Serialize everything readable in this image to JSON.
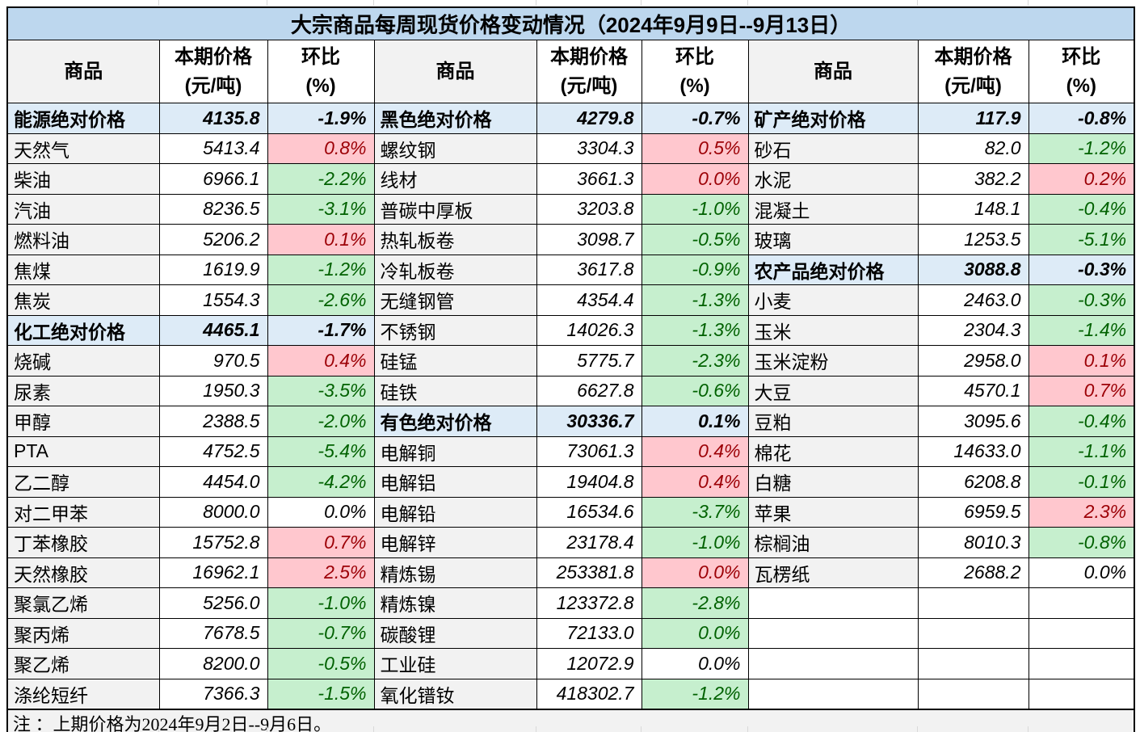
{
  "colors": {
    "title_bg": "#BDD7EE",
    "section_row_bg": "#DDEBF7",
    "up_cell_bg": "#FFC7CE",
    "up_text": "#9C0006",
    "down_cell_bg": "#C6EFCE",
    "down_text": "#006100",
    "name_column_bg": "#F2F2F2",
    "border": "#000000"
  },
  "chart_data": {
    "type": "table",
    "title": "大宗商品每周现货价格变动情况（2024年9月9日--9月13日）",
    "note": "注 ：上期价格为2024年9月2日--9月6日。",
    "column_headers": {
      "commodity": "商品",
      "price": "本期价格\n(元/吨)",
      "pct": "环比\n(%)"
    },
    "groups": [
      {
        "rows": [
          {
            "name": "能源绝对价格",
            "price": "4135.8",
            "pct": "-1.9%",
            "style": "section"
          },
          {
            "name": "天然气",
            "price": "5413.4",
            "pct": "0.8%",
            "style": "up"
          },
          {
            "name": "柴油",
            "price": "6966.1",
            "pct": "-2.2%",
            "style": "down"
          },
          {
            "name": "汽油",
            "price": "8236.5",
            "pct": "-3.1%",
            "style": "down"
          },
          {
            "name": "燃料油",
            "price": "5206.2",
            "pct": "0.1%",
            "style": "up"
          },
          {
            "name": "焦煤",
            "price": "1619.9",
            "pct": "-1.2%",
            "style": "down"
          },
          {
            "name": "焦炭",
            "price": "1554.3",
            "pct": "-2.6%",
            "style": "down"
          },
          {
            "name": "化工绝对价格",
            "price": "4465.1",
            "pct": "-1.7%",
            "style": "section"
          },
          {
            "name": "烧碱",
            "price": "970.5",
            "pct": "0.4%",
            "style": "up"
          },
          {
            "name": "尿素",
            "price": "1950.3",
            "pct": "-3.5%",
            "style": "down"
          },
          {
            "name": "甲醇",
            "price": "2388.5",
            "pct": "-2.0%",
            "style": "down"
          },
          {
            "name": "PTA",
            "price": "4752.5",
            "pct": "-5.4%",
            "style": "down"
          },
          {
            "name": "乙二醇",
            "price": "4454.0",
            "pct": "-4.2%",
            "style": "down"
          },
          {
            "name": "对二甲苯",
            "price": "8000.0",
            "pct": "0.0%",
            "style": "flat"
          },
          {
            "name": "丁苯橡胶",
            "price": "15752.8",
            "pct": "0.7%",
            "style": "up"
          },
          {
            "name": "天然橡胶",
            "price": "16962.1",
            "pct": "2.5%",
            "style": "up"
          },
          {
            "name": "聚氯乙烯",
            "price": "5256.0",
            "pct": "-1.0%",
            "style": "down"
          },
          {
            "name": "聚丙烯",
            "price": "7678.5",
            "pct": "-0.7%",
            "style": "down"
          },
          {
            "name": "聚乙烯",
            "price": "8200.0",
            "pct": "-0.5%",
            "style": "down"
          },
          {
            "name": "涤纶短纤",
            "price": "7366.3",
            "pct": "-1.5%",
            "style": "down"
          }
        ]
      },
      {
        "rows": [
          {
            "name": "黑色绝对价格",
            "price": "4279.8",
            "pct": "-0.7%",
            "style": "section"
          },
          {
            "name": "螺纹钢",
            "price": "3304.3",
            "pct": "0.5%",
            "style": "up"
          },
          {
            "name": "线材",
            "price": "3661.3",
            "pct": "0.0%",
            "style": "up"
          },
          {
            "name": "普碳中厚板",
            "price": "3203.8",
            "pct": "-1.0%",
            "style": "down"
          },
          {
            "name": "热轧板卷",
            "price": "3098.7",
            "pct": "-0.5%",
            "style": "down"
          },
          {
            "name": "冷轧板卷",
            "price": "3617.8",
            "pct": "-0.9%",
            "style": "down"
          },
          {
            "name": "无缝钢管",
            "price": "4354.4",
            "pct": "-1.3%",
            "style": "down"
          },
          {
            "name": "不锈钢",
            "price": "14026.3",
            "pct": "-1.3%",
            "style": "down"
          },
          {
            "name": "硅锰",
            "price": "5775.7",
            "pct": "-2.3%",
            "style": "down"
          },
          {
            "name": "硅铁",
            "price": "6627.8",
            "pct": "-0.6%",
            "style": "down"
          },
          {
            "name": "有色绝对价格",
            "price": "30336.7",
            "pct": "0.1%",
            "style": "section"
          },
          {
            "name": "电解铜",
            "price": "73061.3",
            "pct": "0.4%",
            "style": "up"
          },
          {
            "name": "电解铝",
            "price": "19404.8",
            "pct": "0.4%",
            "style": "up"
          },
          {
            "name": "电解铅",
            "price": "16534.6",
            "pct": "-3.7%",
            "style": "down"
          },
          {
            "name": "电解锌",
            "price": "23178.4",
            "pct": "-1.0%",
            "style": "down"
          },
          {
            "name": "精炼锡",
            "price": "253381.8",
            "pct": "0.0%",
            "style": "up"
          },
          {
            "name": "精炼镍",
            "price": "123372.8",
            "pct": "-2.8%",
            "style": "down"
          },
          {
            "name": "碳酸锂",
            "price": "72133.0",
            "pct": "0.0%",
            "style": "down"
          },
          {
            "name": "工业硅",
            "price": "12072.9",
            "pct": "0.0%",
            "style": "flat"
          },
          {
            "name": "氧化镨钕",
            "price": "418302.7",
            "pct": "-1.2%",
            "style": "down"
          }
        ]
      },
      {
        "rows": [
          {
            "name": "矿产绝对价格",
            "price": "117.9",
            "pct": "-0.8%",
            "style": "section"
          },
          {
            "name": "砂石",
            "price": "82.0",
            "pct": "-1.2%",
            "style": "down"
          },
          {
            "name": "水泥",
            "price": "382.2",
            "pct": "0.2%",
            "style": "up"
          },
          {
            "name": "混凝土",
            "price": "148.1",
            "pct": "-0.4%",
            "style": "down"
          },
          {
            "name": "玻璃",
            "price": "1253.5",
            "pct": "-5.1%",
            "style": "down"
          },
          {
            "name": "农产品绝对价格",
            "price": "3088.8",
            "pct": "-0.3%",
            "style": "section"
          },
          {
            "name": "小麦",
            "price": "2463.0",
            "pct": "-0.3%",
            "style": "down"
          },
          {
            "name": "玉米",
            "price": "2304.3",
            "pct": "-1.4%",
            "style": "down"
          },
          {
            "name": "玉米淀粉",
            "price": "2958.0",
            "pct": "0.1%",
            "style": "up"
          },
          {
            "name": "大豆",
            "price": "4570.1",
            "pct": "0.7%",
            "style": "up"
          },
          {
            "name": "豆粕",
            "price": "3095.6",
            "pct": "-0.4%",
            "style": "down"
          },
          {
            "name": "棉花",
            "price": "14633.0",
            "pct": "-1.1%",
            "style": "down"
          },
          {
            "name": "白糖",
            "price": "6208.8",
            "pct": "-0.1%",
            "style": "down"
          },
          {
            "name": "苹果",
            "price": "6959.5",
            "pct": "2.3%",
            "style": "up"
          },
          {
            "name": "棕榈油",
            "price": "8010.3",
            "pct": "-0.8%",
            "style": "down"
          },
          {
            "name": "瓦楞纸",
            "price": "2688.2",
            "pct": "0.0%",
            "style": "flat"
          },
          {
            "name": "",
            "price": "",
            "pct": "",
            "style": "empty"
          },
          {
            "name": "",
            "price": "",
            "pct": "",
            "style": "empty"
          },
          {
            "name": "",
            "price": "",
            "pct": "",
            "style": "empty"
          },
          {
            "name": "",
            "price": "",
            "pct": "",
            "style": "empty"
          }
        ]
      }
    ]
  }
}
